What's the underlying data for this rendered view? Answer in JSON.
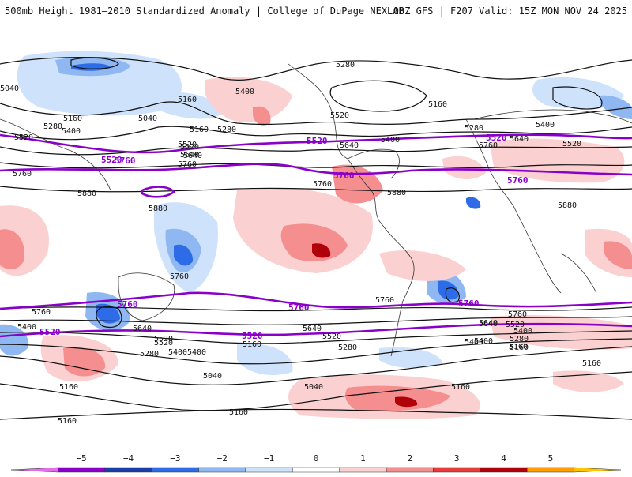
{
  "header": {
    "title": "500mb Height 1981–2010 Standardized Anomaly | College of DuPage NEXLAB",
    "run_info": "00Z GFS | F207 Valid: 15Z MON NOV 24 2025"
  },
  "colors": {
    "contour": "#111111",
    "highlight_contour": "#8a00c9",
    "background": "#ffffff",
    "coastline": "#333333"
  },
  "map": {
    "contour_labels": [
      "5280",
      "5400",
      "5160",
      "5040",
      "5280",
      "5160",
      "5400",
      "5520",
      "5640",
      "5520",
      "5760",
      "5880",
      "5880",
      "5160",
      "5040",
      "5400",
      "5280",
      "5520",
      "5640",
      "5760",
      "5520",
      "5160",
      "5280",
      "5400",
      "5640",
      "5760",
      "5520",
      "5640",
      "5880",
      "5880",
      "5760",
      "5520",
      "5640",
      "5760",
      "5400",
      "5520",
      "5640",
      "5280",
      "5400",
      "5160",
      "5280",
      "5040",
      "5160",
      "5160",
      "5400",
      "5160",
      "5040",
      "5160",
      "5760",
      "5640",
      "5400",
      "5160",
      "5280",
      "5400",
      "5520",
      "5640",
      "5760",
      "5160",
      "5760",
      "5520",
      "5400",
      "5160"
    ],
    "highlight_labels": [
      "5520",
      "5760",
      "5520",
      "5760",
      "5760",
      "5520",
      "5760",
      "5760",
      "5520",
      "5520",
      "5760"
    ]
  },
  "colorbar": {
    "ticks": [
      "−5",
      "−4",
      "−3",
      "−2",
      "−1",
      "0",
      "1",
      "2",
      "3",
      "4",
      "5"
    ],
    "colors": [
      "#e26ee8",
      "#8b00c9",
      "#1b3ea8",
      "#2e6be6",
      "#8fb8f2",
      "#cfe2fb",
      "#ffffff",
      "#fbd0d0",
      "#f58e8e",
      "#e83b3b",
      "#b0000a",
      "#ff9d00",
      "#ffc500"
    ]
  }
}
